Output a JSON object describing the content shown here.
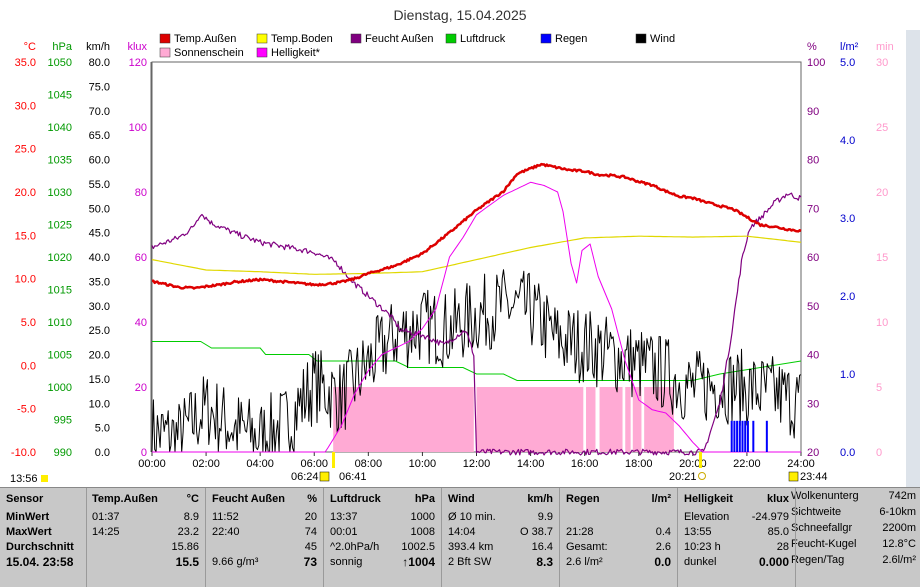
{
  "title": "Dienstag, 15.04.2025",
  "colors": {
    "temp_aussen": "#dd0000",
    "temp_boden": "#e6e600",
    "feucht": "#800080",
    "luftdruck": "#00cc00",
    "regen": "#0000ff",
    "wind": "#000000",
    "sonnenschein": "#ffaad4",
    "helligkeit": "#ee00ee",
    "axis_temp": "#ff0000",
    "axis_hpa": "#009900",
    "axis_kmh": "#000000",
    "axis_klux": "#cc00cc",
    "axis_pct": "#800080",
    "axis_lm2": "#0000cc",
    "axis_min": "#ff99cc"
  },
  "legend": [
    {
      "label": "Temp.Außen",
      "color": "#dd0000"
    },
    {
      "label": "Temp.Boden",
      "color": "#ffff00"
    },
    {
      "label": "Feucht Außen",
      "color": "#800080"
    },
    {
      "label": "Luftdruck",
      "color": "#00cc00"
    },
    {
      "label": "Regen",
      "color": "#0000ff"
    },
    {
      "label": "Wind",
      "color": "#000000"
    },
    {
      "label": "Sonnenschein",
      "color": "#ffaad4"
    },
    {
      "label": "Helligkeit*",
      "color": "#ff00ff"
    }
  ],
  "axes": {
    "temp": {
      "unit": "°C",
      "ticks": [
        "35.0",
        "30.0",
        "25.0",
        "20.0",
        "15.0",
        "10.0",
        "5.0",
        "0.0",
        "-5.0",
        "-10.0"
      ]
    },
    "hpa": {
      "unit": "hPa",
      "ticks": [
        "1050",
        "1045",
        "1040",
        "1035",
        "1030",
        "1025",
        "1020",
        "1015",
        "1010",
        "1005",
        "1000",
        "995",
        "990"
      ]
    },
    "kmh": {
      "unit": "km/h",
      "ticks": [
        "80.0",
        "75.0",
        "70.0",
        "65.0",
        "60.0",
        "55.0",
        "50.0",
        "45.0",
        "40.0",
        "35.0",
        "30.0",
        "25.0",
        "20.0",
        "15.0",
        "10.0",
        "5.0",
        "0.0"
      ]
    },
    "klux": {
      "unit": "klux",
      "ticks": [
        "120",
        "100",
        "80",
        "60",
        "40",
        "20",
        "0"
      ]
    },
    "pct": {
      "unit": "%",
      "ticks": [
        "100",
        "90",
        "80",
        "70",
        "60",
        "50",
        "40",
        "30",
        "20"
      ]
    },
    "lm2": {
      "unit": "l/m²",
      "ticks": [
        "5.0",
        "4.0",
        "3.0",
        "2.0",
        "1.0",
        "0.0"
      ]
    },
    "min": {
      "unit": "min",
      "ticks": [
        "30",
        "25",
        "20",
        "15",
        "10",
        "5",
        "0"
      ]
    },
    "x_ticks": [
      "00:00",
      "02:00",
      "04:00",
      "06:00",
      "08:00",
      "10:00",
      "12:00",
      "14:00",
      "16:00",
      "18:00",
      "20:00",
      "22:00",
      "24:00"
    ]
  },
  "sun_markers": {
    "moonrise": "13:56",
    "sunrise_civil": "06:24",
    "sunrise": "06:41",
    "sunset": "20:21",
    "moonset": "23:44"
  },
  "chart_data": {
    "type": "line",
    "xlabel": "",
    "x_range_hours": [
      0,
      24
    ],
    "series": [
      {
        "name": "Temp.Außen",
        "axis": "°C",
        "x": [
          0,
          0.3,
          1.0,
          1.6,
          2.0,
          2.5,
          3.0,
          4.0,
          5.0,
          6.0,
          6.5,
          7.0,
          7.5,
          8.0,
          9.0,
          10.0,
          11.0,
          12.0,
          13.0,
          13.5,
          14.0,
          14.4,
          15.0,
          15.5,
          16.0,
          16.5,
          17.0,
          17.5,
          18.0,
          18.5,
          19.0,
          19.5,
          20.0,
          20.5,
          21.0,
          21.5,
          22.0,
          22.5,
          23.0,
          23.5,
          24.0
        ],
        "values": [
          9.7,
          9.5,
          9.0,
          8.9,
          9.1,
          9.3,
          9.6,
          9.9,
          9.6,
          9.3,
          9.4,
          9.6,
          10.0,
          10.6,
          11.5,
          12.9,
          15.3,
          17.9,
          20.1,
          22.1,
          22.7,
          23.2,
          22.8,
          22.5,
          22.4,
          22.0,
          21.9,
          21.7,
          21.2,
          20.8,
          20.1,
          19.5,
          19.3,
          18.8,
          18.4,
          18.0,
          17.1,
          16.2,
          16.0,
          15.7,
          15.5
        ]
      },
      {
        "name": "Temp.Boden",
        "axis": "°C",
        "x": [
          0,
          2,
          4,
          6,
          8,
          10,
          12,
          14,
          16,
          18,
          20,
          22,
          24
        ],
        "values": [
          12.2,
          11.0,
          10.8,
          10.5,
          10.6,
          10.8,
          12.2,
          13.6,
          14.7,
          14.9,
          14.8,
          14.9,
          14.2
        ]
      },
      {
        "name": "Feucht Außen",
        "axis": "%",
        "x": [
          0,
          0.5,
          1.0,
          1.5,
          1.8,
          2.2,
          2.6,
          3.0,
          4.0,
          5.0,
          6.0,
          6.8,
          7.4,
          8.0,
          8.8,
          9.2,
          10.0,
          10.8,
          11.3,
          11.6,
          11.9,
          12.0,
          20.0,
          20.4,
          21.0,
          21.4,
          21.8,
          22.1,
          22.5,
          23.0,
          23.5,
          24.0
        ],
        "values": [
          62,
          63,
          64,
          66,
          69,
          67,
          66,
          65,
          63,
          62,
          61,
          59,
          55,
          52,
          48,
          45,
          44,
          42,
          44,
          45,
          40,
          20,
          20,
          20,
          30,
          43,
          59,
          66,
          68,
          71,
          73,
          72
        ]
      },
      {
        "name": "Luftdruck",
        "axis": "hPa",
        "x": [
          0,
          1.8,
          2.2,
          4.0,
          4.2,
          5.8,
          6.1,
          9.0,
          9.5,
          11.5,
          12.0,
          13.0,
          13.5,
          14.5,
          16.0,
          18.0,
          20.0,
          21.0,
          22.5,
          24.0
        ],
        "values": [
          1007,
          1007,
          1006,
          1006,
          1005,
          1005,
          1004,
          1004,
          1003,
          1003,
          1002,
          1002,
          1001,
          1001,
          1001,
          1001,
          1001,
          1002,
          1003,
          1004
        ]
      },
      {
        "name": "Wind",
        "axis": "km/h",
        "x": [
          0,
          1,
          2,
          3,
          4,
          5,
          6,
          7,
          8,
          9,
          10,
          11,
          12,
          13,
          14,
          15,
          16,
          17,
          18,
          19,
          20,
          21,
          22,
          23,
          24
        ],
        "values": [
          4,
          3,
          9,
          5,
          3,
          6,
          14,
          11,
          18,
          24,
          26,
          25,
          28,
          30,
          29,
          23,
          22,
          20,
          18,
          16,
          13,
          14,
          13,
          12,
          10
        ]
      },
      {
        "name": "Helligkeit*",
        "axis": "klux",
        "x": [
          0,
          6.41,
          7.0,
          7.5,
          8.0,
          8.5,
          9.0,
          9.5,
          10.0,
          10.5,
          11.0,
          11.5,
          12.0,
          12.5,
          13.0,
          13.5,
          14.0,
          14.5,
          15.0,
          15.2,
          15.5,
          15.7,
          15.9,
          16.2,
          16.5,
          17.0,
          17.5,
          18.0,
          18.5,
          19.0,
          19.5,
          20.0,
          20.35,
          24.0
        ],
        "values": [
          0,
          0,
          8,
          18,
          25,
          30,
          32,
          34,
          38,
          44,
          60,
          66,
          73,
          76,
          79,
          81,
          83,
          82,
          80,
          74,
          58,
          52,
          62,
          64,
          54,
          44,
          28,
          16,
          13,
          12,
          8,
          3,
          0,
          0
        ]
      },
      {
        "name": "Sonnenschein",
        "axis": "min",
        "x": [
          6.7,
          11.9,
          12.0,
          19.3
        ],
        "values": [
          5,
          5,
          5,
          5
        ]
      },
      {
        "name": "Regen",
        "axis": "l/m²",
        "x": [
          21.4,
          21.5,
          21.6,
          21.7,
          21.8,
          21.9,
          22.0,
          22.2,
          22.7
        ],
        "values": [
          0.4,
          0.4,
          0.4,
          0.4,
          0.4,
          0.4,
          0.4,
          0.4,
          0.4
        ]
      }
    ]
  },
  "stats": {
    "sensor": {
      "header": "Sensor",
      "rows": [
        "MinWert",
        "MaxWert",
        "Durchschnitt"
      ],
      "foot": "15.04. 23:58"
    },
    "temp": {
      "header": "Temp.Außen",
      "unit": "°C",
      "rows": [
        [
          "01:37",
          "8.9"
        ],
        [
          "14:25",
          "23.2"
        ],
        [
          "",
          "15.86"
        ]
      ],
      "foot": [
        "",
        "15.5"
      ]
    },
    "feucht": {
      "header": "Feucht Außen",
      "unit": "%",
      "rows": [
        [
          "11:52",
          "20"
        ],
        [
          "22:40",
          "74"
        ],
        [
          "",
          "45"
        ]
      ],
      "foot": [
        "9.66 g/m³",
        "73"
      ]
    },
    "luft": {
      "header": "Luftdruck",
      "unit": "hPa",
      "rows": [
        [
          "13:37",
          "1000"
        ],
        [
          "00:01",
          "1008"
        ],
        [
          "^2.0hPa/h",
          "1002.5"
        ]
      ],
      "foot": [
        "sonnig",
        "↑1004"
      ]
    },
    "wind": {
      "header": "Wind",
      "unit": "km/h",
      "rows": [
        [
          "Ø 10 min.",
          "9.9"
        ],
        [
          "14:04",
          "O 38.7"
        ],
        [
          "393.4 km",
          "16.4"
        ]
      ],
      "foot": [
        "2 Bft SW",
        "8.3"
      ]
    },
    "regen": {
      "header": "Regen",
      "unit": "l/m²",
      "rows": [
        [
          "",
          ""
        ],
        [
          "21:28",
          "0.4"
        ],
        [
          "Gesamt:",
          "2.6"
        ]
      ],
      "foot": [
        "2.6 l/m²",
        "0.0"
      ]
    },
    "hell": {
      "header": "Helligkeit",
      "unit": "klux",
      "rows": [
        [
          "Elevation",
          "-24.979"
        ],
        [
          "13:55",
          "85.0"
        ],
        [
          "10:23 h",
          "28"
        ]
      ],
      "foot": [
        "dunkel",
        "0.000"
      ]
    },
    "extra": [
      [
        "Wolkenunterg",
        "742m"
      ],
      [
        "Sichtweite",
        "6-10km"
      ],
      [
        "Schneefallgr",
        "2200m"
      ],
      [
        "Feucht-Kugel",
        "12.8°C"
      ],
      [
        "Regen/Tag",
        "2.6l/m²"
      ]
    ]
  }
}
